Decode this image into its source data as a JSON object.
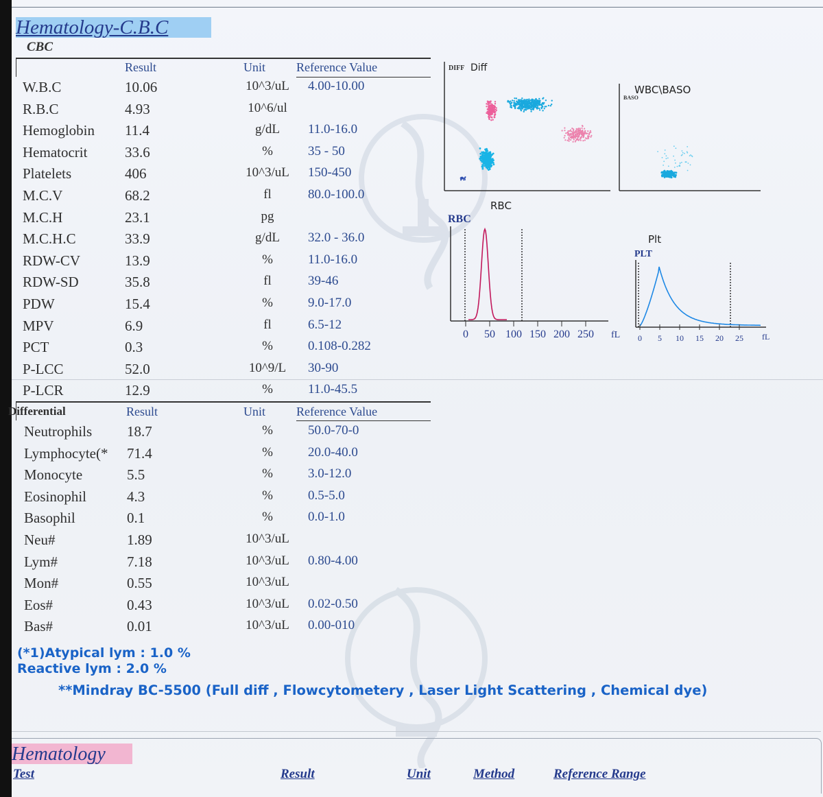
{
  "report": {
    "title": "Hematology-C.B.C",
    "section": "CBC"
  },
  "headers": {
    "result": "Result",
    "unit": "Unit",
    "reference": "Reference Value"
  },
  "cbc": [
    {
      "name": "W.B.C",
      "result": "10.06",
      "unit": "10^3/uL",
      "ref": "4.00-10.00"
    },
    {
      "name": "R.B.C",
      "result": "4.93",
      "unit": "10^6/ul",
      "ref": ""
    },
    {
      "name": "Hemoglobin",
      "result": "11.4",
      "unit": "g/dL",
      "ref": "11.0-16.0"
    },
    {
      "name": "Hematocrit",
      "result": "33.6",
      "unit": "%",
      "ref": "35 - 50"
    },
    {
      "name": "Platelets",
      "result": "406",
      "unit": "10^3/uL",
      "ref": "150-450"
    },
    {
      "name": "M.C.V",
      "result": "68.2",
      "unit": "fl",
      "ref": "80.0-100.0"
    },
    {
      "name": "M.C.H",
      "result": "23.1",
      "unit": "pg",
      "ref": ""
    },
    {
      "name": "M.C.H.C",
      "result": "33.9",
      "unit": "g/dL",
      "ref": "32.0 - 36.0"
    },
    {
      "name": "RDW-CV",
      "result": "13.9",
      "unit": "%",
      "ref": "11.0-16.0"
    },
    {
      "name": "RDW-SD",
      "result": "35.8",
      "unit": "fl",
      "ref": "39-46"
    },
    {
      "name": "PDW",
      "result": "15.4",
      "unit": "%",
      "ref": "9.0-17.0"
    },
    {
      "name": "MPV",
      "result": "6.9",
      "unit": "fl",
      "ref": "6.5-12"
    },
    {
      "name": "PCT",
      "result": "0.3",
      "unit": "%",
      "ref": "0.108-0.282"
    },
    {
      "name": "P-LCC",
      "result": "52.0",
      "unit": "10^9/L",
      "ref": "30-90"
    },
    {
      "name": "P-LCR",
      "result": "12.9",
      "unit": "%",
      "ref": "11.0-45.5"
    }
  ],
  "differential": {
    "label": "Differential",
    "rows": [
      {
        "name": "Neutrophils",
        "result": "18.7",
        "unit": "%",
        "ref": "50.0-70-0"
      },
      {
        "name": "Lymphocyte(*",
        "result": "71.4",
        "unit": "%",
        "ref": "20.0-40.0"
      },
      {
        "name": "Monocyte",
        "result": "5.5",
        "unit": "%",
        "ref": "3.0-12.0"
      },
      {
        "name": "Eosinophil",
        "result": "4.3",
        "unit": "%",
        "ref": "0.5-5.0"
      },
      {
        "name": "Basophil",
        "result": "0.1",
        "unit": "%",
        "ref": "0.0-1.0"
      },
      {
        "name": "Neu#",
        "result": "1.89",
        "unit": "10^3/uL",
        "ref": ""
      },
      {
        "name": "Lym#",
        "result": "7.18",
        "unit": "10^3/uL",
        "ref": "0.80-4.00"
      },
      {
        "name": "Mon#",
        "result": "0.55",
        "unit": "10^3/uL",
        "ref": ""
      },
      {
        "name": "Eos#",
        "result": "0.43",
        "unit": "10^3/uL",
        "ref": "0.02-0.50"
      },
      {
        "name": "Bas#",
        "result": "0.01",
        "unit": "10^3/uL",
        "ref": "0.00-010"
      }
    ]
  },
  "notes": {
    "atypical": "(*1)Atypical lym : 1.0 %",
    "reactive": "Reactive lym : 2.0 %",
    "instrument": "**Mindray BC-5500 (Full diff , Flowcytometery , Laser Light Scattering , Chemical dye)"
  },
  "plots": {
    "diff": {
      "tag": "DIFF",
      "title": "Diff"
    },
    "baso": {
      "title": "WBC\\BASO",
      "tag": "BASO"
    },
    "rbc": {
      "title": "RBC",
      "tag": "RBC",
      "ticks": [
        "0",
        "50",
        "100",
        "150",
        "200",
        "250"
      ],
      "unit": "fL",
      "color": "#c2185b"
    },
    "plt": {
      "title": "Plt",
      "tag": "PLT",
      "ticks": [
        "0",
        "5",
        "10",
        "15",
        "20",
        "25"
      ],
      "unit": "fL",
      "color": "#1e88e5"
    }
  },
  "bottom": {
    "title": "Hematology",
    "columns": {
      "test": "Test",
      "result": "Result",
      "unit": "Unit",
      "method": "Method",
      "reference": "Reference Range"
    }
  }
}
